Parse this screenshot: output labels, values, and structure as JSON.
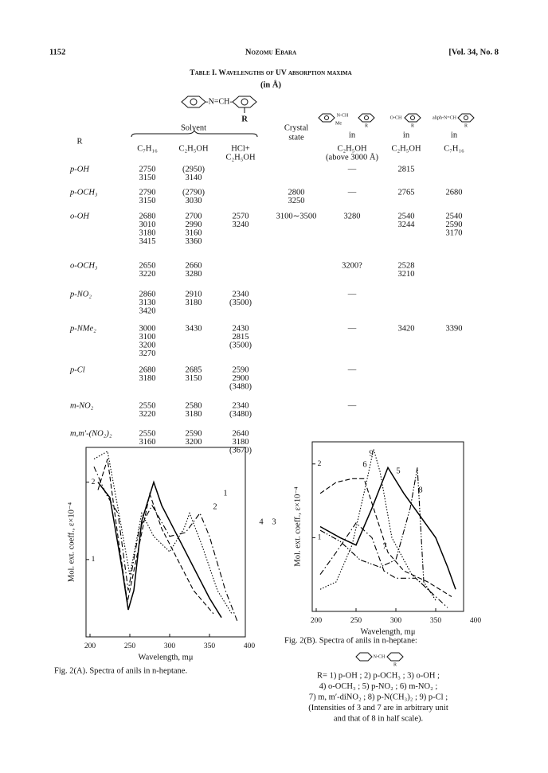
{
  "header": {
    "page": "1152",
    "author": "Nozomu Ebara",
    "volume": "[Vol. 34, No. 8"
  },
  "table": {
    "title": "Table I. Wavelengths of UV absorption maxima",
    "unit": "(in Å)",
    "structures": [
      "-N=CH-",
      "R",
      "N-CH",
      "Me",
      "R",
      "O-CH",
      "R",
      "aliph-N=CH",
      "R"
    ],
    "headers": [
      "R",
      "Solvent",
      "C₇H₁₆",
      "C₂H₅OH",
      "HCl+",
      "C₂H₅OH",
      "Crystal",
      "state",
      "in",
      "C₂H₅OH",
      "(above 3000 Å)",
      "in",
      "C₂H₅OH",
      "in",
      "C₇H₁₆"
    ],
    "rows": [
      {
        "R": "p-OH",
        "cells": [
          [
            "2750",
            "3150"
          ],
          [
            "(2950)",
            "3140"
          ],
          [],
          [],
          [
            "—"
          ],
          [
            "2815"
          ],
          []
        ]
      },
      {
        "R": "p-OCH₃",
        "cells": [
          [
            "2790",
            "3150"
          ],
          [
            "(2790)",
            "3030"
          ],
          [],
          [
            "2800",
            "3250"
          ],
          [
            "—"
          ],
          [
            "2765"
          ],
          [
            "2680"
          ]
        ]
      },
      {
        "R": "o-OH",
        "cells": [
          [
            "2680",
            "3010",
            "3180",
            "3415"
          ],
          [
            "2700",
            "2990",
            "3160",
            "3360"
          ],
          [
            "2570",
            "3240"
          ],
          [
            "3100∼3500"
          ],
          [
            "3280"
          ],
          [
            "2540",
            "3244"
          ],
          [
            "2540",
            "2590",
            "3170"
          ]
        ]
      },
      {
        "R": "o-OCH₃",
        "cells": [
          [
            "2650",
            "3220"
          ],
          [
            "2660",
            "3280"
          ],
          [],
          [],
          [
            "3200?"
          ],
          [
            "2528",
            "3210"
          ],
          []
        ]
      },
      {
        "R": "p-NO₂",
        "cells": [
          [
            "2860",
            "3130",
            "3420"
          ],
          [
            "2910",
            "3180"
          ],
          [
            "2340",
            "(3500)"
          ],
          [],
          [
            "—"
          ],
          [],
          []
        ]
      },
      {
        "R": "p-NMe₂",
        "cells": [
          [
            "3000",
            "3100",
            "3200",
            "3270"
          ],
          [
            "3430"
          ],
          [
            "2430",
            "2815",
            "(3500)"
          ],
          [],
          [
            "—"
          ],
          [
            "3420"
          ],
          [
            "3390"
          ]
        ]
      },
      {
        "R": "p-Cl",
        "cells": [
          [
            "2680",
            "3180"
          ],
          [
            "2685",
            "3150"
          ],
          [
            "2590",
            "2900",
            "(3480)"
          ],
          [],
          [
            "—"
          ],
          [],
          []
        ]
      },
      {
        "R": "m-NO₂",
        "cells": [
          [
            "2550",
            "3220"
          ],
          [
            "2580",
            "3180"
          ],
          [
            "2340",
            "(3480)"
          ],
          [],
          [
            "—"
          ],
          [],
          []
        ]
      },
      {
        "R": "m,m′-(NO₂)₂",
        "cells": [
          [
            "2550",
            "3160"
          ],
          [
            "2590",
            "3200"
          ],
          [
            "2640",
            "3180",
            "(3670)"
          ],
          [],
          [],
          [],
          []
        ]
      }
    ]
  },
  "chart_data": [
    {
      "type": "line",
      "caption": "Fig. 2(A).  Spectra of anils in n-heptane.",
      "xlabel": "Wavelength, mμ",
      "ylabel": "Mol. ext. coeff., ε×10⁻⁴",
      "xlim": [
        195,
        395
      ],
      "xticks": [
        200,
        250,
        300,
        350,
        400
      ],
      "ylim": [
        0,
        2.45
      ],
      "yticks": [
        1,
        2
      ],
      "series": [
        {
          "name": "1",
          "color": "#000",
          "dash": "solid",
          "x": [
            210,
            225,
            240,
            248,
            255,
            265,
            280,
            290,
            310,
            330,
            350,
            365
          ],
          "values": [
            2.0,
            1.8,
            0.9,
            0.35,
            0.6,
            1.5,
            2.0,
            1.7,
            1.3,
            0.9,
            0.5,
            0.25
          ]
        },
        {
          "name": "2",
          "color": "#000",
          "dash": "dashed",
          "x": [
            210,
            222,
            235,
            247,
            258,
            275,
            290,
            310,
            330,
            355
          ],
          "values": [
            1.9,
            2.3,
            1.3,
            0.45,
            1.0,
            1.85,
            1.4,
            1.0,
            0.6,
            0.3
          ]
        },
        {
          "name": "3",
          "color": "#000",
          "dash": "dashdot",
          "x": [
            205,
            220,
            235,
            248,
            262,
            278,
            300,
            320,
            338,
            350,
            370,
            385
          ],
          "values": [
            2.2,
            1.85,
            1.6,
            0.6,
            1.4,
            1.7,
            1.3,
            1.35,
            1.6,
            1.3,
            0.6,
            0.2
          ]
        },
        {
          "name": "4",
          "color": "#000",
          "dash": "dotted",
          "x": [
            205,
            222,
            238,
            250,
            265,
            280,
            300,
            318,
            325,
            340,
            360,
            378
          ],
          "values": [
            2.3,
            2.4,
            1.5,
            0.8,
            1.6,
            1.3,
            1.1,
            1.4,
            1.6,
            1.2,
            0.6,
            0.3
          ]
        }
      ]
    },
    {
      "type": "line",
      "caption": "Fig. 2(B).  Spectra of anils in n-heptane:",
      "xlabel": "Wavelength, mμ",
      "ylabel": "Mol. ext. coeff., ε×10⁻⁴",
      "xlim": [
        195,
        385
      ],
      "xticks": [
        200,
        250,
        300,
        350,
        400
      ],
      "ylim": [
        0,
        2.3
      ],
      "yticks": [
        1,
        2
      ],
      "series": [
        {
          "name": "5",
          "color": "#000",
          "dash": "solid",
          "x": [
            205,
            230,
            250,
            270,
            290,
            310,
            330,
            350,
            365,
            375
          ],
          "values": [
            1.15,
            1.0,
            0.9,
            1.4,
            1.95,
            1.6,
            1.3,
            1.0,
            0.6,
            0.3
          ]
        },
        {
          "name": "6",
          "color": "#000",
          "dash": "dashed",
          "x": [
            205,
            225,
            245,
            260,
            275,
            290,
            310,
            340,
            370
          ],
          "values": [
            1.6,
            1.75,
            1.8,
            1.8,
            1.3,
            0.8,
            0.55,
            0.4,
            0.2
          ]
        },
        {
          "name": "7",
          "color": "#000",
          "dash": "dashdot",
          "x": [
            205,
            225,
            250,
            270,
            285,
            300,
            325,
            345,
            365
          ],
          "values": [
            0.5,
            0.8,
            1.2,
            1.0,
            0.55,
            0.45,
            0.45,
            0.25,
            0.05
          ]
        },
        {
          "name": "8",
          "color": "#000",
          "dash": "dashdotdot",
          "x": [
            205,
            230,
            255,
            280,
            300,
            318,
            327,
            335,
            350
          ],
          "values": [
            1.1,
            0.95,
            0.7,
            0.6,
            0.7,
            1.4,
            1.95,
            0.4,
            0.15
          ]
        },
        {
          "name": "9",
          "color": "#000",
          "dash": "dotted",
          "x": [
            205,
            225,
            245,
            262,
            272,
            280,
            295,
            320,
            345
          ],
          "values": [
            0.3,
            0.4,
            0.9,
            1.7,
            2.2,
            1.9,
            1.0,
            0.5,
            0.25
          ]
        }
      ],
      "legend_text": [
        "N-CH",
        "R",
        "R= 1) p-OH ; 2) p-OCH₃ ; 3) o-OH ;",
        "4) o-OCH₃ ; 5) p-NO₂ ; 6) m-NO₂ ;",
        "7) m, m′-diNO₂ ; 8) p-N(CH₃)₂ ; 9) p-Cl ;",
        "(Intensities of 3 and 7 are in arbitrary unit",
        "and that of 8 in half scale)."
      ]
    }
  ]
}
